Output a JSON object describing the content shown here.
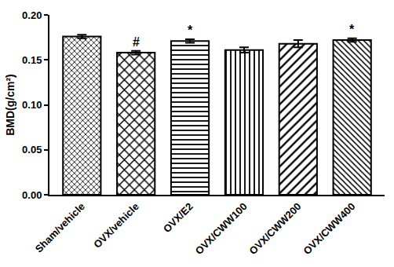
{
  "chart_data": {
    "type": "bar",
    "y_label": "BMD(g/cm²)",
    "categories": [
      "Sham/vehicle",
      "OVX/vehicle",
      "OVX/E2",
      "OVX/CWW100",
      "OVX/CWW200",
      "OVX/CWW400"
    ],
    "values": [
      0.176,
      0.158,
      0.171,
      0.161,
      0.168,
      0.172
    ],
    "errors": [
      0.002,
      0.002,
      0.002,
      0.003,
      0.004,
      0.002
    ],
    "color": "#ffffff",
    "ylim": [
      0,
      0.2
    ],
    "yticks": [
      {
        "value": 0,
        "label": "0.00"
      },
      {
        "value": 0.05,
        "label": "0.05"
      },
      {
        "value": 0.1,
        "label": "0.10"
      },
      {
        "value": 0.15,
        "label": "0.15"
      },
      {
        "value": 0.2,
        "label": "0.20"
      }
    ],
    "grid": false,
    "annotations": [
      {
        "category": "OVX/vehicle",
        "text": "#"
      },
      {
        "category": "OVX/E2",
        "text": "*"
      },
      {
        "category": "OVX/CWW400",
        "text": "*"
      }
    ]
  }
}
